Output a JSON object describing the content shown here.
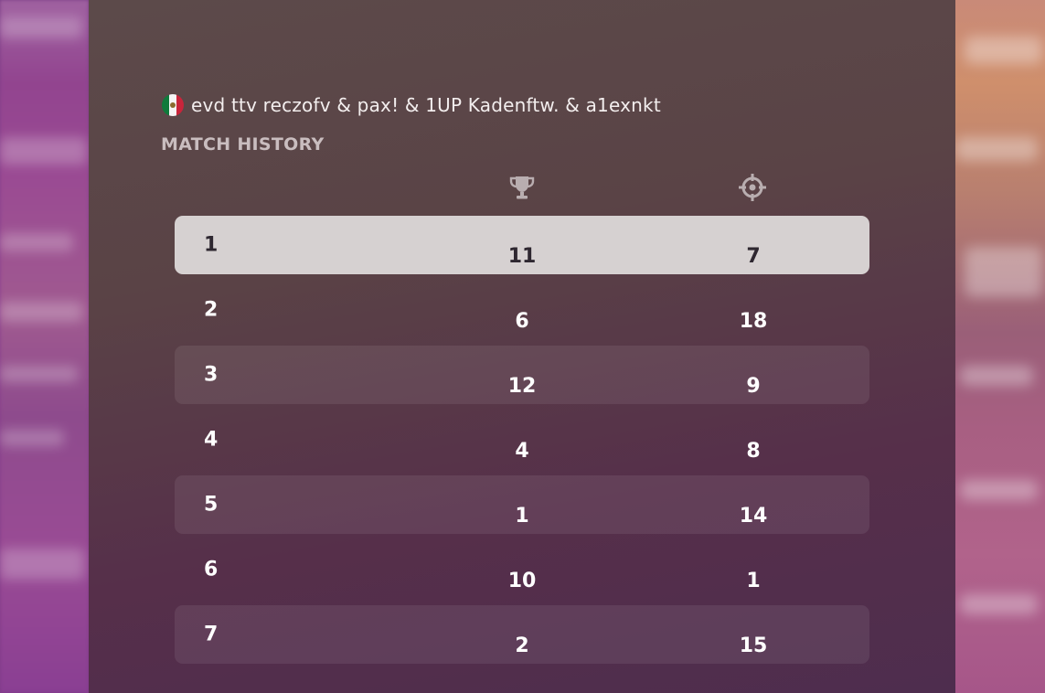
{
  "team": {
    "flag_icon": "mexico-flag-icon",
    "players_label": "evd ttv reczofv & pax! & 1UP Kadenftw. & a1exnkt"
  },
  "section": {
    "title": "MATCH HISTORY"
  },
  "columns": {
    "placement_icon": "trophy-icon",
    "eliminations_icon": "crosshair-icon"
  },
  "matches": [
    {
      "match": "1",
      "placement": "11",
      "eliminations": "7"
    },
    {
      "match": "2",
      "placement": "6",
      "eliminations": "18"
    },
    {
      "match": "3",
      "placement": "12",
      "eliminations": "9"
    },
    {
      "match": "4",
      "placement": "4",
      "eliminations": "8"
    },
    {
      "match": "5",
      "placement": "1",
      "eliminations": "14"
    },
    {
      "match": "6",
      "placement": "10",
      "eliminations": "1"
    },
    {
      "match": "7",
      "placement": "2",
      "eliminations": "15"
    }
  ],
  "colors": {
    "panel": "#5a4346",
    "active_row": "#d6d1d1",
    "title_gray": "#c9bdbf"
  }
}
